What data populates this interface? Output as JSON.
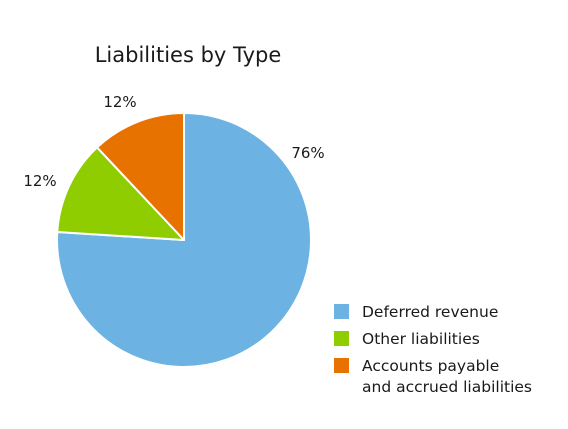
{
  "chart_data": {
    "type": "pie",
    "title": "Liabilities by Type",
    "slices": [
      {
        "name": "Deferred revenue",
        "value": 76,
        "label": "76%",
        "color": "#6cb2e2"
      },
      {
        "name": "Other liabilities",
        "value": 12,
        "label": "12%",
        "color": "#8fcc00"
      },
      {
        "name": "Accounts payable and accrued liabilities",
        "value": 12,
        "label": "12%",
        "color": "#e87200",
        "legend_lines": [
          "Accounts payable",
          "and accrued liabilities"
        ]
      }
    ],
    "start_angle": "12 o'clock",
    "direction": "clockwise",
    "legend_position": "bottom-right"
  }
}
